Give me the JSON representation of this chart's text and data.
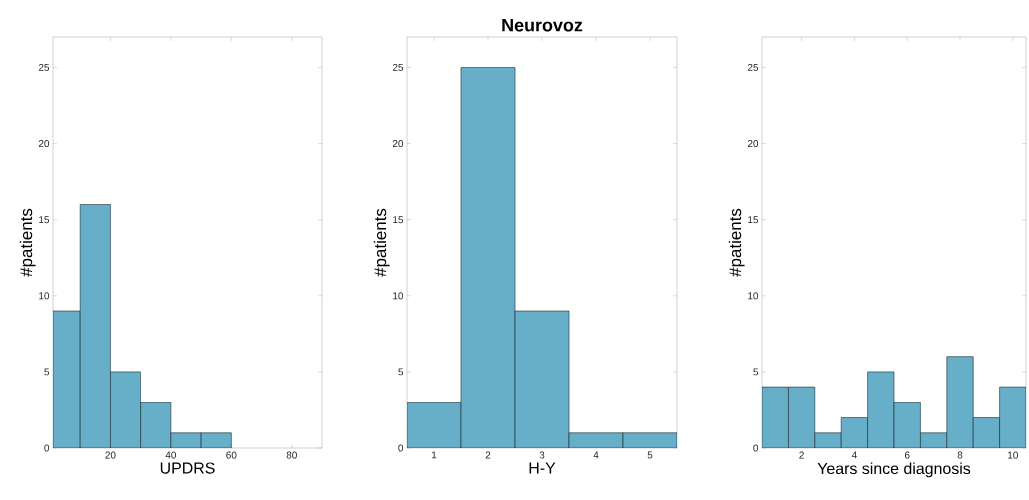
{
  "chart_data": [
    {
      "type": "histogram",
      "xlabel": "UPDRS",
      "ylabel": "#patients",
      "color": "#67aec9",
      "bins": [
        1,
        10,
        20,
        30,
        40,
        50,
        60
      ],
      "values": [
        9,
        16,
        5,
        3,
        1,
        1
      ],
      "xlim": [
        1,
        90
      ],
      "xticks": [
        20,
        40,
        60,
        80
      ],
      "ylim": [
        0,
        27
      ],
      "yticks": [
        0,
        5,
        10,
        15,
        20,
        25
      ]
    },
    {
      "type": "histogram",
      "title": "Neurovoz",
      "xlabel": "H-Y",
      "ylabel": "#patients",
      "color": "#67aec9",
      "bins": [
        0.5,
        1.5,
        2.5,
        3.5,
        4.5,
        5.5
      ],
      "values": [
        3,
        25,
        9,
        1,
        1
      ],
      "xlim": [
        0.5,
        5.5
      ],
      "xticks": [
        1,
        2,
        3,
        4,
        5
      ],
      "ylim": [
        0,
        27
      ],
      "yticks": [
        0,
        5,
        10,
        15,
        20,
        25
      ]
    },
    {
      "type": "histogram",
      "xlabel": "Years since diagnosis",
      "ylabel": "#patients",
      "color": "#67aec9",
      "bins": [
        0.5,
        1.5,
        2.5,
        3.5,
        4.5,
        5.5,
        6.5,
        7.5,
        8.5,
        9.5,
        10.5
      ],
      "values": [
        4,
        4,
        1,
        2,
        5,
        3,
        1,
        6,
        2,
        4
      ],
      "xlim": [
        0.5,
        10.5
      ],
      "xticks": [
        2,
        4,
        6,
        8,
        10
      ],
      "ylim": [
        0,
        27
      ],
      "yticks": [
        0,
        5,
        10,
        15,
        20,
        25
      ]
    }
  ]
}
